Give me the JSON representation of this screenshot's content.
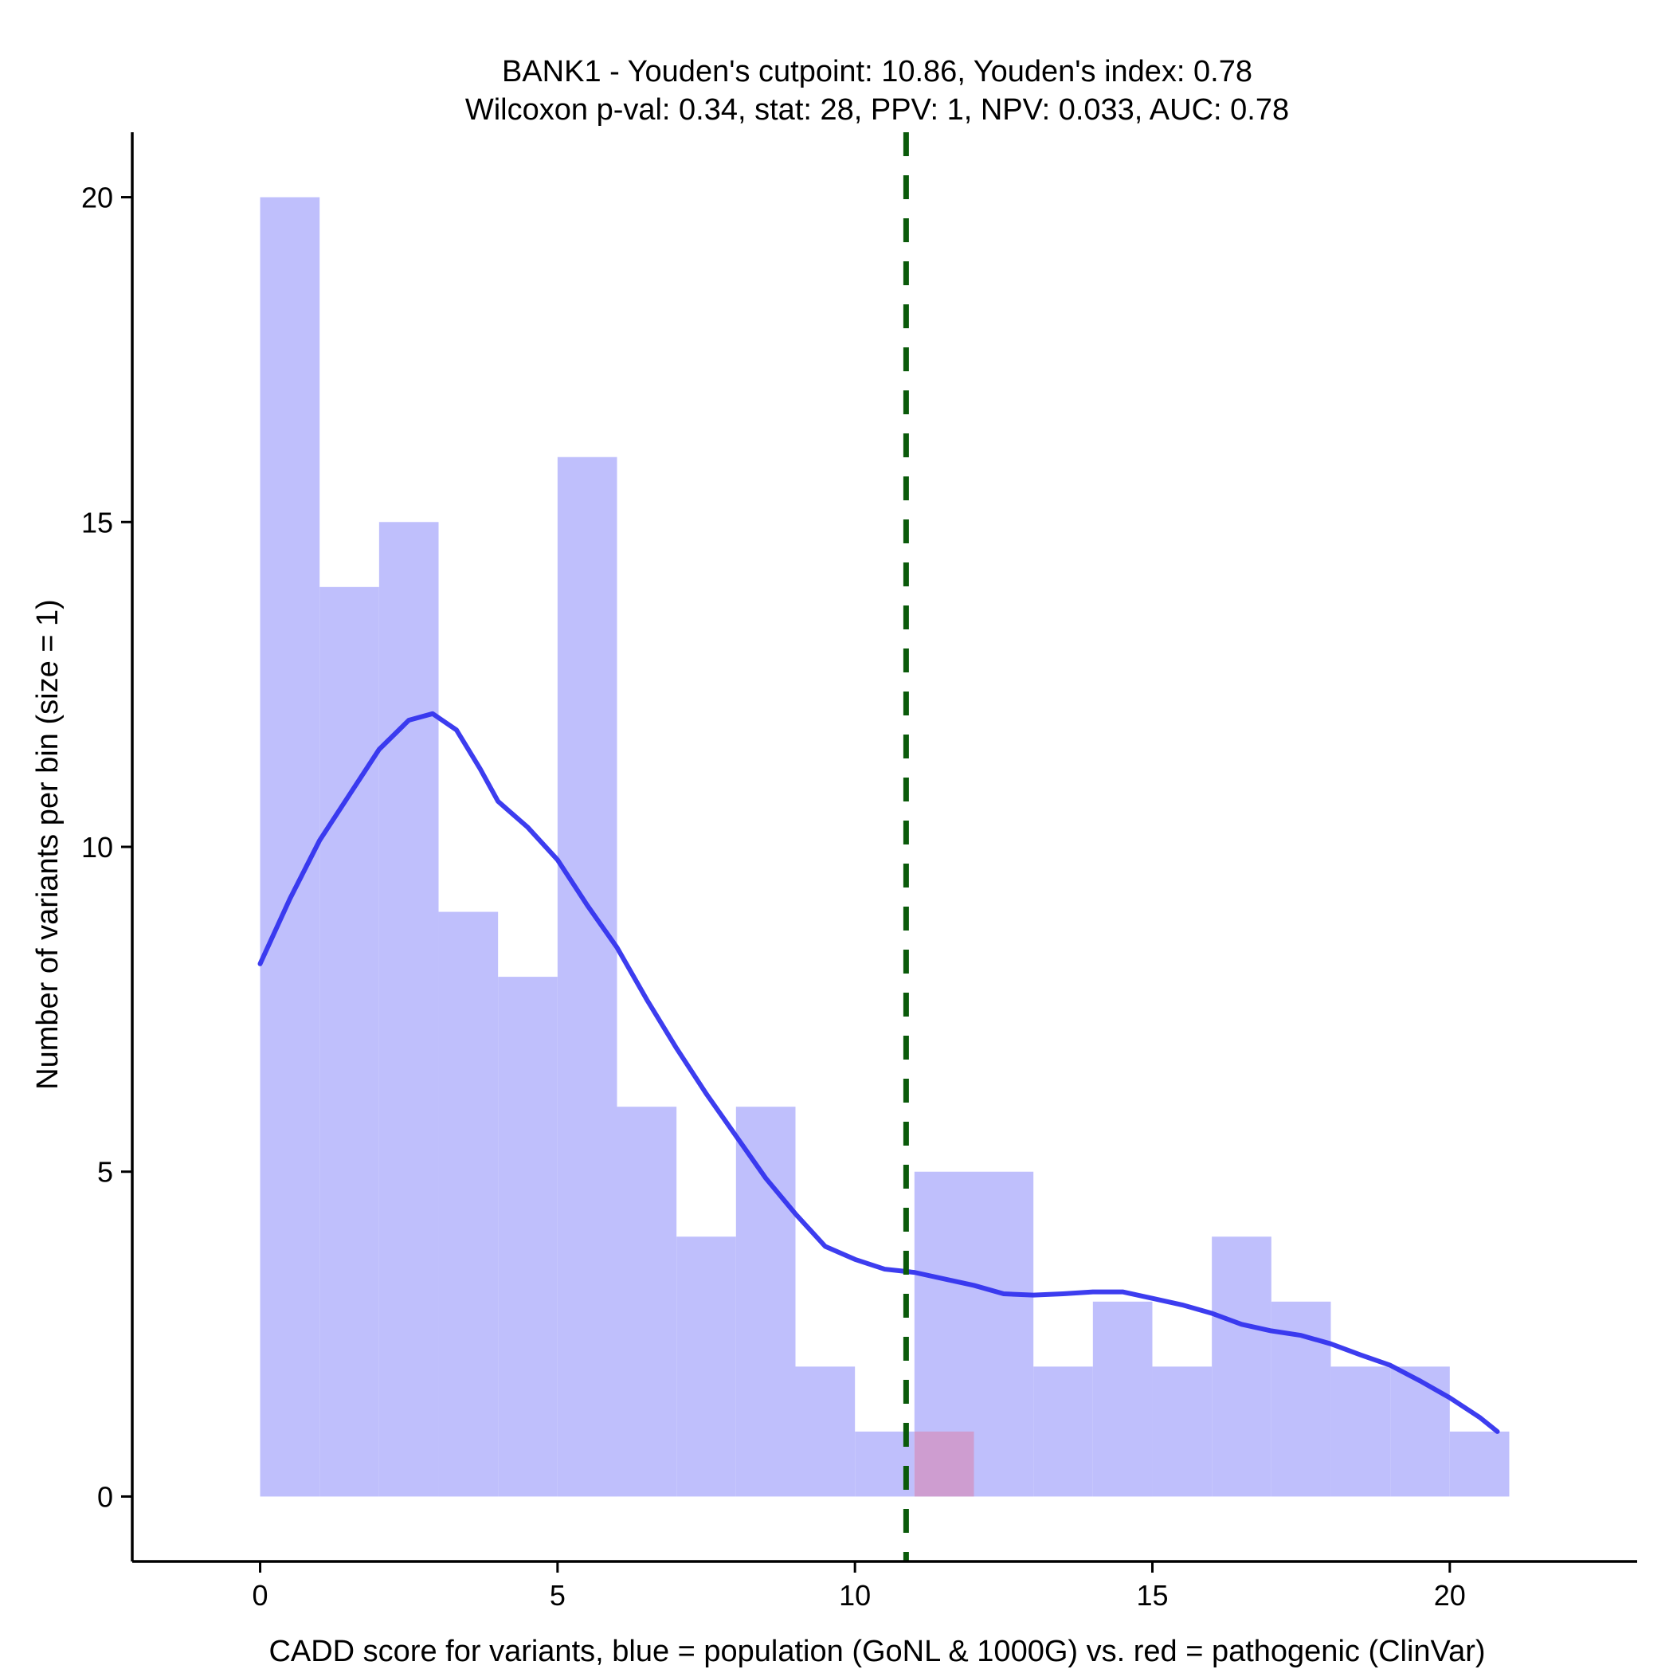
{
  "chart_data": {
    "type": "bar",
    "title": "BANK1 - Youden's cutpoint: 10.86, Youden's index: 0.78",
    "subtitle": "Wilcoxon p-val: 0.34, stat: 28, PPV: 1, NPV: 0.033, AUC: 0.78",
    "xlabel": "CADD score for variants, blue = population (GoNL & 1000G) vs. red = pathogenic (ClinVar)",
    "ylabel": "Number of variants per bin (size = 1)",
    "xlim": [
      -2.15,
      23.15
    ],
    "ylim": [
      -1,
      21
    ],
    "x_ticks": [
      0,
      5,
      10,
      15,
      20
    ],
    "y_ticks": [
      0,
      5,
      10,
      15,
      20
    ],
    "bin_width": 1,
    "series": [
      {
        "color": "#bfbffc",
        "bin_starts": [
          0,
          1,
          2,
          3,
          4,
          5,
          6,
          7,
          8,
          9,
          10,
          11,
          12,
          13,
          14,
          15,
          16,
          17,
          18,
          19,
          20
        ],
        "values": [
          20,
          14,
          15,
          9,
          8,
          16,
          6,
          4,
          6,
          2,
          1,
          5,
          5,
          2,
          3,
          2,
          4,
          3,
          2,
          2,
          1
        ]
      },
      {
        "color": "#d097c8",
        "bin_starts": [
          11
        ],
        "values": [
          1
        ]
      }
    ],
    "density_curve": {
      "color": "#3333ee",
      "x": [
        0,
        0.5,
        1,
        1.5,
        2,
        2.5,
        2.9,
        3.3,
        3.7,
        4,
        4.5,
        5,
        5.5,
        6,
        6.5,
        7,
        7.5,
        8,
        8.5,
        9,
        9.5,
        10,
        10.5,
        11,
        11.5,
        12,
        12.5,
        13,
        13.5,
        14,
        14.5,
        15,
        15.5,
        16,
        16.5,
        17,
        17.5,
        18,
        18.5,
        19,
        19.5,
        20,
        20.5,
        20.8
      ],
      "y": [
        8.2,
        9.2,
        10.1,
        10.8,
        11.5,
        11.95,
        12.05,
        11.8,
        11.2,
        10.7,
        10.3,
        9.8,
        9.1,
        8.45,
        7.65,
        6.9,
        6.2,
        5.55,
        4.9,
        4.35,
        3.85,
        3.65,
        3.5,
        3.45,
        3.35,
        3.25,
        3.12,
        3.1,
        3.12,
        3.15,
        3.15,
        3.05,
        2.95,
        2.82,
        2.65,
        2.55,
        2.48,
        2.35,
        2.18,
        2.02,
        1.78,
        1.52,
        1.22,
        1.0
      ]
    },
    "cutpoint": {
      "x": 10.86,
      "color": "#0a5a0a",
      "style": "dashed"
    },
    "grid": false,
    "legend": "none"
  }
}
